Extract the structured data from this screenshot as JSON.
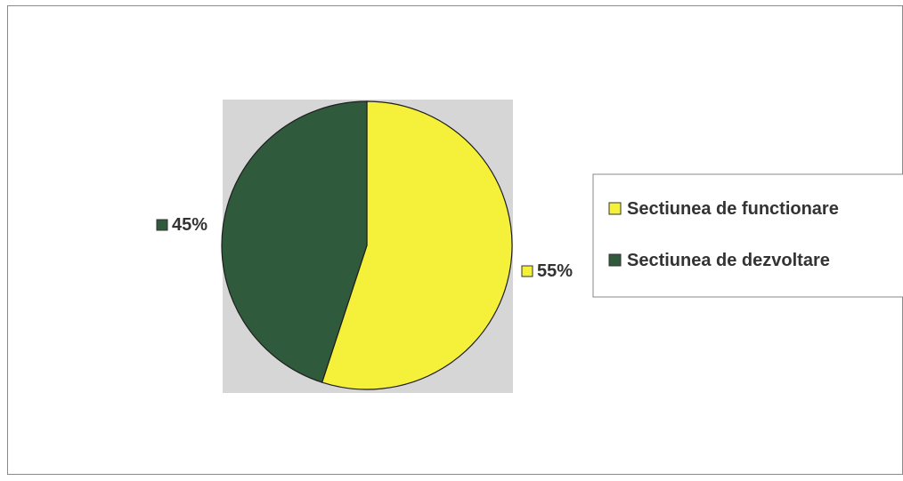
{
  "chart_data": {
    "type": "pie",
    "categories": [
      "Sectiunea de functionare",
      "Sectiunea de dezvoltare"
    ],
    "values": [
      55,
      45
    ],
    "data_labels": [
      "55%",
      "45%"
    ],
    "colors": [
      "#f5f03a",
      "#2f5a3c"
    ],
    "plot_background": "#d6d6d6",
    "legend_placement": "right",
    "title": ""
  }
}
